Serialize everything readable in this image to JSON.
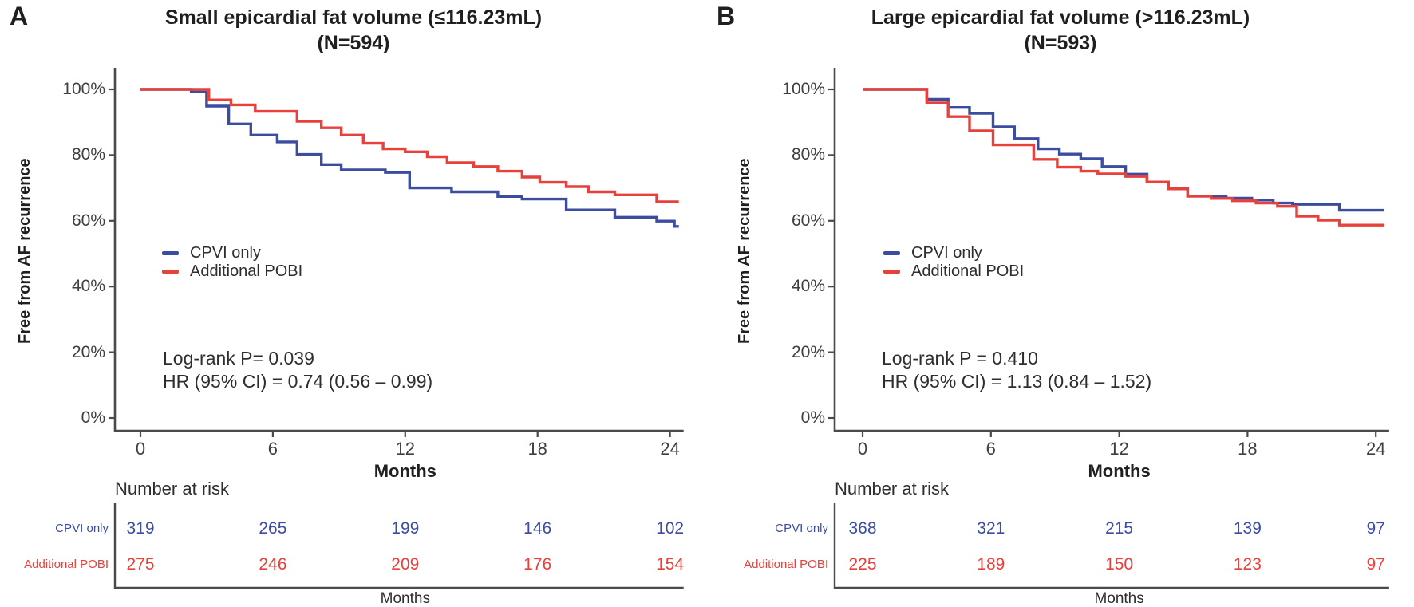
{
  "chart_data": [
    {
      "panel_label": "A",
      "type": "line",
      "subtype": "kaplan-meier-step",
      "title": "Small epicardial fat volume (≤116.23mL)",
      "subtitle": "(N=594)",
      "xlabel": "Months",
      "ylabel": "Free from AF recurrence",
      "xlim": [
        0,
        24.4
      ],
      "ylim": [
        0,
        100
      ],
      "x_ticks": [
        0,
        6,
        12,
        18,
        24
      ],
      "y_ticks": [
        "100%",
        "80%",
        "60%",
        "40%",
        "20%",
        "0%"
      ],
      "grid": false,
      "legend_position": "inside-left",
      "stats": [
        "Log-rank P= 0.039",
        "HR (95% CI) = 0.74 (0.56 – 0.99)"
      ],
      "series": [
        {
          "name": "CPVI only",
          "color": "#3C4DA0",
          "start": [
            0,
            100
          ],
          "steps": [
            [
              2.3,
              99.2
            ],
            [
              3,
              94.9
            ],
            [
              4,
              89.5
            ],
            [
              5,
              86.1
            ],
            [
              6.2,
              84.0
            ],
            [
              7.1,
              80.2
            ],
            [
              8.2,
              77.1
            ],
            [
              9.1,
              75.5
            ],
            [
              11.1,
              74.7
            ],
            [
              12.2,
              70.0
            ],
            [
              14.1,
              68.8
            ],
            [
              16.2,
              67.4
            ],
            [
              17.3,
              66.6
            ],
            [
              19.3,
              63.3
            ],
            [
              21.5,
              61.1
            ],
            [
              23.4,
              59.9
            ],
            [
              24.2,
              58.3
            ]
          ]
        },
        {
          "name": "Additional POBI",
          "color": "#E8403A",
          "start": [
            0,
            100
          ],
          "steps": [
            [
              3.1,
              96.8
            ],
            [
              4.1,
              95.3
            ],
            [
              5.2,
              93.3
            ],
            [
              7.1,
              90.3
            ],
            [
              8.2,
              88.3
            ],
            [
              9.1,
              86.1
            ],
            [
              10.1,
              83.6
            ],
            [
              11,
              81.9
            ],
            [
              12,
              81.0
            ],
            [
              13,
              79.5
            ],
            [
              13.9,
              77.7
            ],
            [
              15.1,
              76.5
            ],
            [
              16.2,
              75.1
            ],
            [
              17.3,
              73.3
            ],
            [
              18.1,
              71.7
            ],
            [
              19.3,
              70.4
            ],
            [
              20.3,
              68.8
            ],
            [
              21.5,
              67.9
            ],
            [
              23.4,
              65.8
            ]
          ]
        }
      ],
      "risk_table": {
        "header": "Number at risk",
        "xlabel": "Months",
        "rows": [
          {
            "label": "CPVI only",
            "color": "#3C4DA0",
            "values": [
              319,
              265,
              199,
              146,
              102
            ]
          },
          {
            "label": "Additional POBI",
            "color": "#E8403A",
            "values": [
              275,
              246,
              209,
              176,
              154
            ]
          }
        ]
      }
    },
    {
      "panel_label": "B",
      "type": "line",
      "subtype": "kaplan-meier-step",
      "title": "Large epicardial fat volume (>116.23mL)",
      "subtitle": "(N=593)",
      "xlabel": "Months",
      "ylabel": "Free from AF recurrence",
      "xlim": [
        0,
        24.4
      ],
      "ylim": [
        0,
        100
      ],
      "x_ticks": [
        0,
        6,
        12,
        18,
        24
      ],
      "y_ticks": [
        "100%",
        "80%",
        "60%",
        "40%",
        "20%",
        "0%"
      ],
      "grid": false,
      "legend_position": "inside-left",
      "stats": [
        "Log-rank P = 0.410",
        "HR (95% CI) = 1.13 (0.84 – 1.52)"
      ],
      "series": [
        {
          "name": "CPVI only",
          "color": "#3C4DA0",
          "start": [
            0,
            100
          ],
          "steps": [
            [
              3,
              97.0
            ],
            [
              4,
              94.5
            ],
            [
              5,
              92.7
            ],
            [
              6.1,
              88.6
            ],
            [
              7.1,
              85.0
            ],
            [
              8.2,
              81.9
            ],
            [
              9.2,
              80.3
            ],
            [
              10.2,
              78.9
            ],
            [
              11.2,
              76.5
            ],
            [
              12.3,
              74.2
            ],
            [
              13.3,
              71.8
            ],
            [
              14.3,
              69.7
            ],
            [
              15.2,
              67.5
            ],
            [
              17,
              66.9
            ],
            [
              18.2,
              66.3
            ],
            [
              19.2,
              65.4
            ],
            [
              20.1,
              65.0
            ],
            [
              22.3,
              63.2
            ]
          ]
        },
        {
          "name": "Additional POBI",
          "color": "#E8403A",
          "start": [
            0,
            100
          ],
          "steps": [
            [
              3,
              95.9
            ],
            [
              4,
              91.7
            ],
            [
              5,
              87.4
            ],
            [
              6.1,
              83.1
            ],
            [
              8,
              78.7
            ],
            [
              9.1,
              76.3
            ],
            [
              10.2,
              75.1
            ],
            [
              11,
              74.3
            ],
            [
              12.3,
              73.5
            ],
            [
              13.3,
              71.8
            ],
            [
              14.3,
              69.7
            ],
            [
              15.2,
              67.5
            ],
            [
              16.3,
              66.8
            ],
            [
              17.3,
              66.1
            ],
            [
              18.4,
              65.4
            ],
            [
              19.4,
              64.4
            ],
            [
              20.3,
              61.4
            ],
            [
              21.3,
              60.2
            ],
            [
              22.3,
              58.7
            ]
          ]
        }
      ],
      "risk_table": {
        "header": "Number at risk",
        "xlabel": "Months",
        "rows": [
          {
            "label": "CPVI only",
            "color": "#3C4DA0",
            "values": [
              368,
              321,
              215,
              139,
              97
            ]
          },
          {
            "label": "Additional POBI",
            "color": "#E8403A",
            "values": [
              225,
              189,
              150,
              123,
              97
            ]
          }
        ]
      }
    }
  ]
}
